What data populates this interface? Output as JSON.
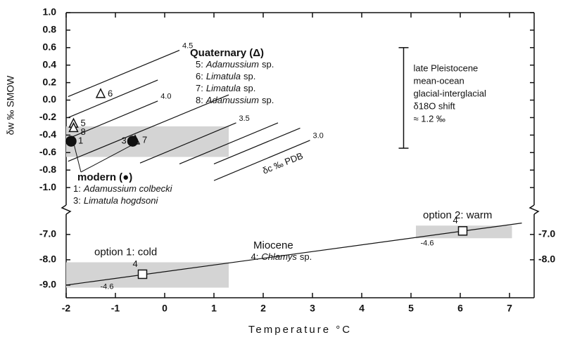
{
  "chart_data": [
    {
      "type": "scatter",
      "xlim": [
        -2,
        7.5
      ],
      "ylim": [
        -1.2,
        1.0
      ],
      "yticks": [
        {
          "value": 1,
          "label": "1.0"
        },
        0.8,
        0.6,
        0.4,
        0.2,
        {
          "value": 0,
          "label": "0.0"
        },
        -0.2,
        -0.4,
        -0.6,
        -0.8,
        {
          "value": -1,
          "label": "-1.0"
        }
      ],
      "y_label": "δw ‰ SMOW",
      "series": [
        {
          "name": "Quaternary (Δ)",
          "marker": "triangle",
          "x": [
            -1.85,
            -1.3,
            -0.6,
            -1.85
          ],
          "values": [
            -0.27,
            0.07,
            -0.46,
            -0.32
          ],
          "point_labels": [
            "5",
            "6",
            "7",
            "8"
          ],
          "entries": [
            [
              "5:",
              "Adamussium",
              "sp."
            ],
            [
              "6:",
              "Limatula",
              "sp."
            ],
            [
              "7:",
              "Limatula",
              "sp."
            ],
            [
              "8:",
              "Adamussium",
              "sp."
            ]
          ]
        },
        {
          "name": "modern (●)",
          "marker": "circle",
          "x": [
            -1.9,
            -0.65
          ],
          "values": [
            -0.47,
            -0.47
          ],
          "point_labels": [
            "1",
            "3"
          ],
          "entries": [
            [
              "1:",
              "Adamussium colbecki"
            ],
            [
              "3:",
              "Limatula hogdsoni"
            ]
          ]
        }
      ],
      "isolines": [
        {
          "x": [
            -1.96,
            0.3
          ],
          "values": [
            0.04,
            0.57
          ],
          "label": "4.5"
        },
        {
          "x": [
            -1.96,
            -0.14
          ],
          "values": [
            -0.2,
            0.23
          ]
        },
        {
          "x": [
            -1.96,
            -0.14
          ],
          "values": [
            -0.44,
            -0.01
          ],
          "label": "4.0"
        },
        {
          "x": [
            -1.96,
            1.3
          ],
          "values": [
            -0.7,
            0.06
          ]
        },
        {
          "x": [
            -0.5,
            1.45
          ],
          "values": [
            -0.72,
            -0.26
          ],
          "label": "3.5"
        },
        {
          "x": [
            0.3,
            2.3
          ],
          "values": [
            -0.73,
            -0.26
          ]
        },
        {
          "x": [
            1.0,
            2.75
          ],
          "values": [
            -0.73,
            -0.32
          ]
        },
        {
          "x": [
            1.0,
            2.95
          ],
          "values": [
            -0.92,
            -0.46
          ],
          "label": "3.0"
        }
      ],
      "isoline_title": "δc ‰ PDB",
      "shaded": {
        "x": [
          -2,
          1.3
        ],
        "values": [
          -0.3,
          -0.65
        ]
      },
      "shift_bar": {
        "x": 4.85,
        "values": [
          0.6,
          -0.55
        ]
      },
      "shift_text": [
        "late Pleistocene",
        "mean-ocean",
        "glacial-interglacial",
        "δ18O shift",
        "≈ 1.2 ‰"
      ]
    },
    {
      "type": "scatter",
      "xlim": [
        -2,
        7.5
      ],
      "xticks": [
        -2,
        -1,
        0,
        1,
        2,
        3,
        4,
        5,
        6,
        7
      ],
      "x_label": "Temperature °C",
      "ylim": [
        -9.5,
        -6.2
      ],
      "yticks": [
        {
          "value": -7,
          "label": "-7.0"
        },
        {
          "value": -8,
          "label": "-8.0"
        },
        {
          "value": -9,
          "label": "-9.0"
        }
      ],
      "y2ticks": [
        {
          "value": -7,
          "label": "-7.0"
        },
        {
          "value": -8,
          "label": "-8.0"
        }
      ],
      "line": {
        "name": "Miocene",
        "species": [
          "4:",
          "Chlamys",
          "sp."
        ],
        "x": [
          -2,
          7.25
        ],
        "values": [
          -9.0,
          -6.55
        ]
      },
      "series": [
        {
          "marker": "square",
          "x": [
            -0.45,
            6.05
          ],
          "values": [
            -8.57,
            -6.86
          ],
          "point_labels": [
            "4",
            "4"
          ],
          "isoline_labels": [
            "-4.6",
            "-4.6"
          ]
        }
      ],
      "shaded": [
        {
          "label": "option 1: cold",
          "x": [
            -2,
            1.3
          ],
          "values": [
            -8.1,
            -9.1
          ]
        },
        {
          "label": "option 2: warm",
          "x": [
            5.1,
            7.05
          ],
          "values": [
            -6.65,
            -7.15
          ]
        }
      ]
    }
  ]
}
